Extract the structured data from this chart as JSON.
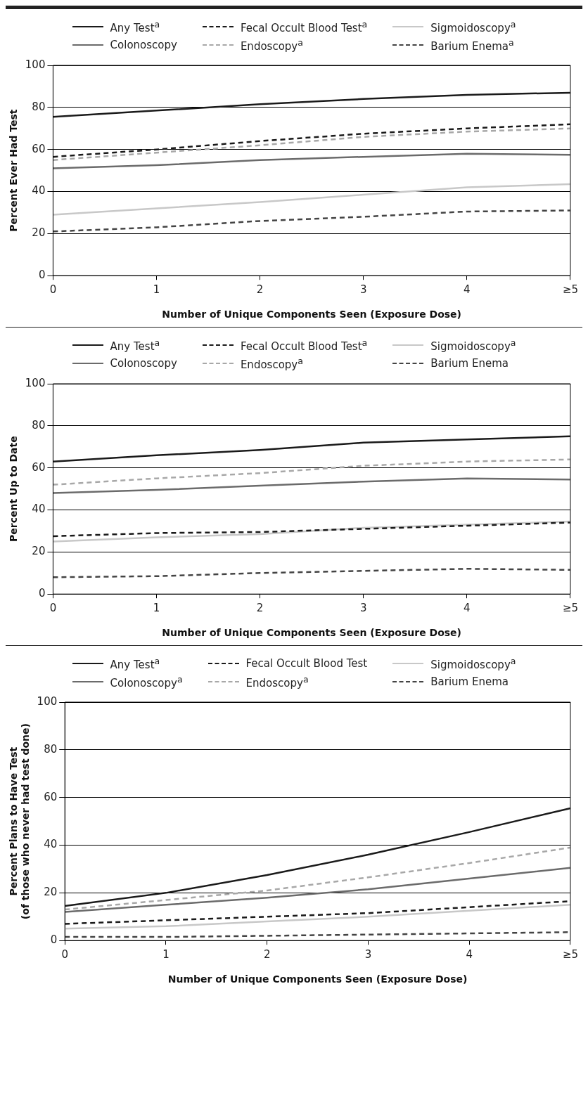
{
  "chart_data": [
    {
      "type": "line",
      "xlabel": "Number of Unique Components Seen (Exposure Dose)",
      "ylabel": "Percent Ever Had Test",
      "categories": [
        "0",
        "1",
        "2",
        "3",
        "4",
        "≥5"
      ],
      "ylim": [
        0,
        100
      ],
      "yticks": [
        0,
        20,
        40,
        60,
        80,
        100
      ],
      "grid": "y",
      "legend": "top",
      "marker": "none",
      "series": [
        {
          "name": "Any Test$^{a}$",
          "color": "#1a1a1a",
          "line_style": "solid",
          "values": [
            75.5,
            78.5,
            81.5,
            84,
            86,
            87
          ]
        },
        {
          "name": "Fecal Occult Blood Test$^{a}$",
          "color": "#1a1a1a",
          "line_style": "dashed",
          "values": [
            56.5,
            60,
            64,
            67.5,
            70,
            72
          ]
        },
        {
          "name": "Sigmoidoscopy$^{a}$",
          "color": "#c8c8c8",
          "line_style": "solid",
          "values": [
            29,
            32,
            35,
            38.5,
            42,
            43.5
          ]
        },
        {
          "name": "Colonoscopy",
          "color": "#6b6b6b",
          "line_style": "solid",
          "values": [
            51,
            52.5,
            55,
            56.5,
            58,
            57.5
          ]
        },
        {
          "name": "Endoscopy$^{a}$",
          "color": "#a8a8a8",
          "line_style": "dashed",
          "values": [
            55,
            58.5,
            62,
            66,
            68.5,
            70
          ]
        },
        {
          "name": "Barium Enema$^{a}$",
          "color": "#444444",
          "line_style": "dashed",
          "values": [
            21,
            23,
            26,
            28,
            30.5,
            31
          ]
        }
      ]
    },
    {
      "type": "line",
      "xlabel": "Number of Unique Components Seen (Exposure Dose)",
      "ylabel": "Percent Up to Date",
      "categories": [
        "0",
        "1",
        "2",
        "3",
        "4",
        "≥5"
      ],
      "ylim": [
        0,
        100
      ],
      "yticks": [
        0,
        20,
        40,
        60,
        80,
        100
      ],
      "grid": "y",
      "legend": "top",
      "marker": "none",
      "series": [
        {
          "name": "Any Test$^{a}$",
          "color": "#1a1a1a",
          "line_style": "solid",
          "values": [
            63,
            66,
            68.5,
            72,
            73.5,
            75
          ]
        },
        {
          "name": "Fecal Occult Blood Test$^{a}$",
          "color": "#1a1a1a",
          "line_style": "dashed",
          "values": [
            27.5,
            29,
            29.5,
            31,
            32.5,
            34
          ]
        },
        {
          "name": "Sigmoidoscopy$^{a}$",
          "color": "#c8c8c8",
          "line_style": "solid",
          "values": [
            25,
            27,
            28.5,
            31.5,
            33,
            34.5
          ]
        },
        {
          "name": "Colonoscopy",
          "color": "#6b6b6b",
          "line_style": "solid",
          "values": [
            48,
            49.5,
            51.5,
            53.5,
            55,
            54.5
          ]
        },
        {
          "name": "Endoscopy$^{a}$",
          "color": "#a8a8a8",
          "line_style": "dashed",
          "values": [
            52,
            55,
            57.5,
            61,
            63,
            64
          ]
        },
        {
          "name": "Barium Enema",
          "color": "#444444",
          "line_style": "dashed",
          "values": [
            8,
            8.5,
            10,
            11,
            12,
            11.5
          ]
        }
      ]
    },
    {
      "type": "line",
      "xlabel": "Number of Unique Components Seen (Exposure Dose)",
      "ylabel": "Percent Plans to Have Test\n(of those who never had test done)",
      "categories": [
        "0",
        "1",
        "2",
        "3",
        "4",
        "≥5"
      ],
      "ylim": [
        0,
        100
      ],
      "yticks": [
        0,
        20,
        40,
        60,
        80,
        100
      ],
      "grid": "y",
      "legend": "top",
      "marker": "none",
      "series": [
        {
          "name": "Any Test$^{a}$",
          "color": "#1a1a1a",
          "line_style": "solid",
          "values": [
            14.5,
            20,
            27.5,
            36,
            45.5,
            55.5
          ]
        },
        {
          "name": "Fecal Occult Blood Test",
          "color": "#1a1a1a",
          "line_style": "dashed",
          "values": [
            7,
            8.5,
            10,
            11.5,
            14,
            16.5
          ]
        },
        {
          "name": "Sigmoidoscopy$^{a}$",
          "color": "#c8c8c8",
          "line_style": "solid",
          "values": [
            5,
            6,
            8,
            10,
            12.5,
            15
          ]
        },
        {
          "name": "Colonoscopy$^{a}$",
          "color": "#6b6b6b",
          "line_style": "solid",
          "values": [
            12,
            15,
            18,
            21.5,
            26,
            30.5
          ]
        },
        {
          "name": "Endoscopy$^{a}$",
          "color": "#a8a8a8",
          "line_style": "dashed",
          "values": [
            13,
            17,
            21,
            26.5,
            32.5,
            39
          ]
        },
        {
          "name": "Barium Enema",
          "color": "#444444",
          "line_style": "dashed",
          "values": [
            1.5,
            1.5,
            2,
            2.5,
            3,
            3.5
          ]
        }
      ]
    }
  ]
}
